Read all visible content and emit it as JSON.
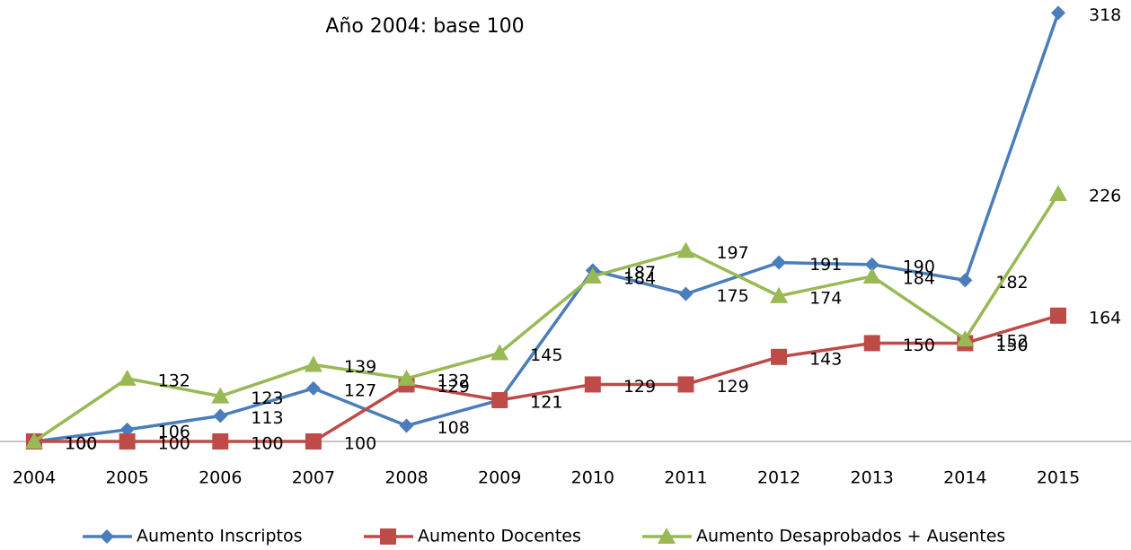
{
  "chart_data": {
    "type": "line",
    "subtitle": "Año 2004: base 100",
    "categories": [
      "2004",
      "2005",
      "2006",
      "2007",
      "2008",
      "2009",
      "2010",
      "2011",
      "2012",
      "2013",
      "2014",
      "2015"
    ],
    "series": [
      {
        "name": "Aumento Inscriptos",
        "color": "#4a7ebb",
        "marker": "diamond",
        "values": [
          100,
          106,
          113,
          127,
          108,
          121,
          187,
          175,
          191,
          190,
          182,
          318
        ]
      },
      {
        "name": "Aumento Docentes",
        "color": "#be4b48",
        "marker": "square",
        "values": [
          100,
          100,
          100,
          100,
          129,
          121,
          129,
          129,
          143,
          150,
          150,
          164
        ]
      },
      {
        "name": "Aumento Desaprobados + Ausentes",
        "color": "#98b954",
        "marker": "triangle",
        "values": [
          100,
          132,
          123,
          139,
          132,
          145,
          184,
          197,
          174,
          184,
          152,
          226
        ]
      }
    ],
    "ylim": [
      100,
      320
    ],
    "legend": "bottom"
  }
}
